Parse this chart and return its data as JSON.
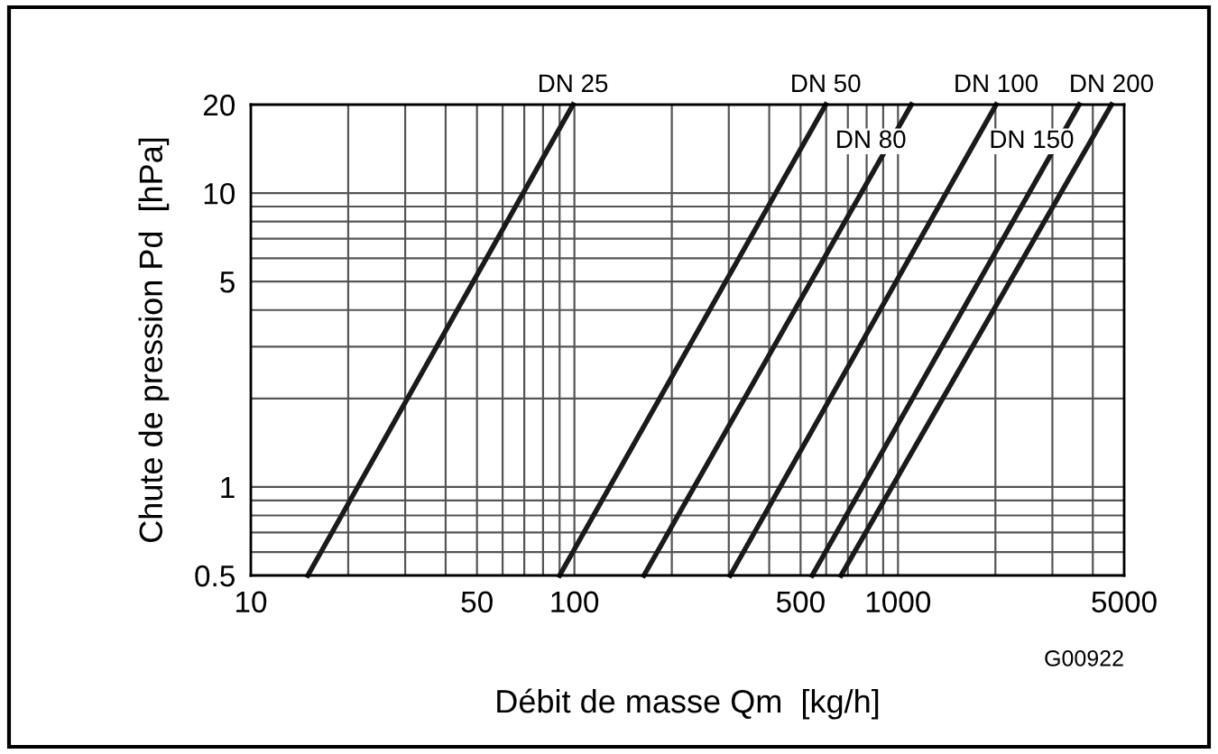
{
  "chart_data": {
    "type": "line",
    "xlabel": "Débit de masse Qm  [kg/h]",
    "ylabel": "Chute de pression Pd  [hPa]",
    "log": "xy",
    "xlim": [
      10,
      5000
    ],
    "ylim": [
      0.5,
      20
    ],
    "xticks": [
      10,
      50,
      100,
      500,
      1000,
      5000
    ],
    "yticks": [
      0.5,
      1,
      5,
      10,
      20
    ],
    "grid": true,
    "legend": false,
    "marker": "none",
    "line_style": "solid",
    "annotations": [
      "G00922"
    ],
    "series": [
      {
        "name": "DN 25",
        "color": "#1a1a1a",
        "x": [
          15,
          99
        ],
        "values": [
          0.5,
          20
        ]
      },
      {
        "name": "DN 50",
        "color": "#1a1a1a",
        "x": [
          90,
          598
        ],
        "values": [
          0.5,
          20
        ]
      },
      {
        "name": "DN 80",
        "color": "#1a1a1a",
        "x": [
          164,
          1100
        ],
        "values": [
          0.5,
          20
        ]
      },
      {
        "name": "DN 100",
        "color": "#1a1a1a",
        "x": [
          303,
          2010
        ],
        "values": [
          0.5,
          20
        ]
      },
      {
        "name": "DN 150",
        "color": "#1a1a1a",
        "x": [
          543,
          3630
        ],
        "values": [
          0.5,
          20
        ]
      },
      {
        "name": "DN 200",
        "color": "#1a1a1a",
        "x": [
          667,
          4570
        ],
        "values": [
          0.5,
          20
        ]
      }
    ]
  }
}
